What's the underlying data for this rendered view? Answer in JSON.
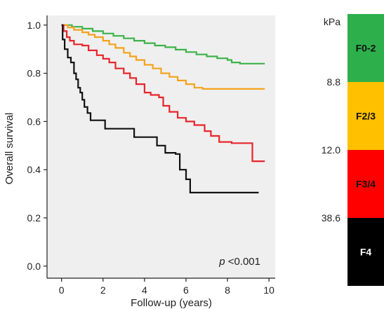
{
  "chart_data": {
    "type": "line",
    "step": true,
    "xlabel": "Follow-up (years)",
    "ylabel": "Overall survival",
    "xlim": [
      -0.7,
      10.3
    ],
    "ylim": [
      -0.05,
      1.04
    ],
    "xticks": [
      0,
      2,
      4,
      6,
      8,
      10
    ],
    "xtick_labels": [
      "0",
      "2",
      "4",
      "6",
      "8",
      "10"
    ],
    "yticks": [
      0.0,
      0.2,
      0.4,
      0.6,
      0.8,
      1.0
    ],
    "ytick_labels": [
      "0.0",
      "0.2",
      "0.4",
      "0.6",
      "0.8",
      "1.0"
    ],
    "grid": false,
    "background": "#efefef",
    "annotation": {
      "prefix": "p",
      "text": " <0.001"
    },
    "series": [
      {
        "name": "F0-2",
        "color": "#3db34a",
        "points": [
          [
            0,
            1.0
          ],
          [
            0.5,
            0.993
          ],
          [
            1.0,
            0.985
          ],
          [
            1.5,
            0.975
          ],
          [
            2.0,
            0.965
          ],
          [
            2.5,
            0.955
          ],
          [
            3.0,
            0.945
          ],
          [
            3.5,
            0.935
          ],
          [
            4.0,
            0.925
          ],
          [
            4.5,
            0.915
          ],
          [
            5.0,
            0.908
          ],
          [
            5.5,
            0.898
          ],
          [
            6.0,
            0.888
          ],
          [
            6.5,
            0.878
          ],
          [
            7.0,
            0.87
          ],
          [
            7.5,
            0.862
          ],
          [
            8.0,
            0.855
          ],
          [
            8.2,
            0.845
          ],
          [
            8.6,
            0.84
          ],
          [
            9.0,
            0.84
          ],
          [
            9.8,
            0.84
          ]
        ]
      },
      {
        "name": "F2/3",
        "color": "#f5a31a",
        "points": [
          [
            0,
            1.0
          ],
          [
            0.3,
            0.99
          ],
          [
            0.6,
            0.98
          ],
          [
            1.0,
            0.97
          ],
          [
            1.3,
            0.96
          ],
          [
            1.6,
            0.95
          ],
          [
            2.0,
            0.935
          ],
          [
            2.3,
            0.92
          ],
          [
            2.6,
            0.905
          ],
          [
            3.0,
            0.885
          ],
          [
            3.3,
            0.87
          ],
          [
            3.6,
            0.855
          ],
          [
            4.0,
            0.835
          ],
          [
            4.4,
            0.82
          ],
          [
            4.8,
            0.8
          ],
          [
            5.2,
            0.785
          ],
          [
            5.6,
            0.77
          ],
          [
            6.0,
            0.755
          ],
          [
            6.4,
            0.74
          ],
          [
            6.8,
            0.735
          ],
          [
            9.8,
            0.735
          ]
        ]
      },
      {
        "name": "F3/4",
        "color": "#e8252b",
        "points": [
          [
            0,
            1.0
          ],
          [
            0.1,
            0.975
          ],
          [
            0.25,
            0.95
          ],
          [
            0.4,
            0.935
          ],
          [
            0.6,
            0.92
          ],
          [
            1.0,
            0.915
          ],
          [
            1.3,
            0.895
          ],
          [
            1.7,
            0.875
          ],
          [
            2.0,
            0.86
          ],
          [
            2.3,
            0.845
          ],
          [
            2.6,
            0.82
          ],
          [
            3.0,
            0.8
          ],
          [
            3.3,
            0.78
          ],
          [
            3.6,
            0.755
          ],
          [
            4.0,
            0.72
          ],
          [
            4.3,
            0.71
          ],
          [
            4.7,
            0.7
          ],
          [
            4.9,
            0.665
          ],
          [
            5.2,
            0.64
          ],
          [
            5.6,
            0.615
          ],
          [
            6.0,
            0.6
          ],
          [
            6.4,
            0.585
          ],
          [
            6.9,
            0.56
          ],
          [
            7.2,
            0.54
          ],
          [
            7.6,
            0.515
          ],
          [
            8.2,
            0.51
          ],
          [
            9.0,
            0.51
          ],
          [
            9.2,
            0.435
          ],
          [
            9.8,
            0.435
          ]
        ]
      },
      {
        "name": "F4",
        "color": "#111111",
        "points": [
          [
            0,
            1.0
          ],
          [
            0.05,
            0.94
          ],
          [
            0.15,
            0.9
          ],
          [
            0.3,
            0.865
          ],
          [
            0.45,
            0.845
          ],
          [
            0.6,
            0.8
          ],
          [
            0.7,
            0.775
          ],
          [
            0.8,
            0.74
          ],
          [
            0.9,
            0.72
          ],
          [
            1.0,
            0.69
          ],
          [
            1.1,
            0.66
          ],
          [
            1.25,
            0.635
          ],
          [
            1.4,
            0.605
          ],
          [
            2.0,
            0.605
          ],
          [
            2.1,
            0.57
          ],
          [
            3.4,
            0.57
          ],
          [
            3.5,
            0.535
          ],
          [
            4.5,
            0.535
          ],
          [
            4.6,
            0.5
          ],
          [
            5.0,
            0.47
          ],
          [
            5.5,
            0.465
          ],
          [
            5.7,
            0.4
          ],
          [
            6.0,
            0.36
          ],
          [
            6.2,
            0.305
          ],
          [
            9.5,
            0.305
          ]
        ]
      }
    ]
  },
  "scale": {
    "unit": "kPa",
    "thresholds": [
      "8.8",
      "12.0",
      "38.6"
    ],
    "blocks": [
      {
        "label": "F0-2",
        "color": "#2db04b",
        "text_color": "#111111"
      },
      {
        "label": "F2/3",
        "color": "#ffc000",
        "text_color": "#111111"
      },
      {
        "label": "F3/4",
        "color": "#ff0000",
        "text_color": "#111111"
      },
      {
        "label": "F4",
        "color": "#000000",
        "text_color": "#ffffff"
      }
    ]
  }
}
